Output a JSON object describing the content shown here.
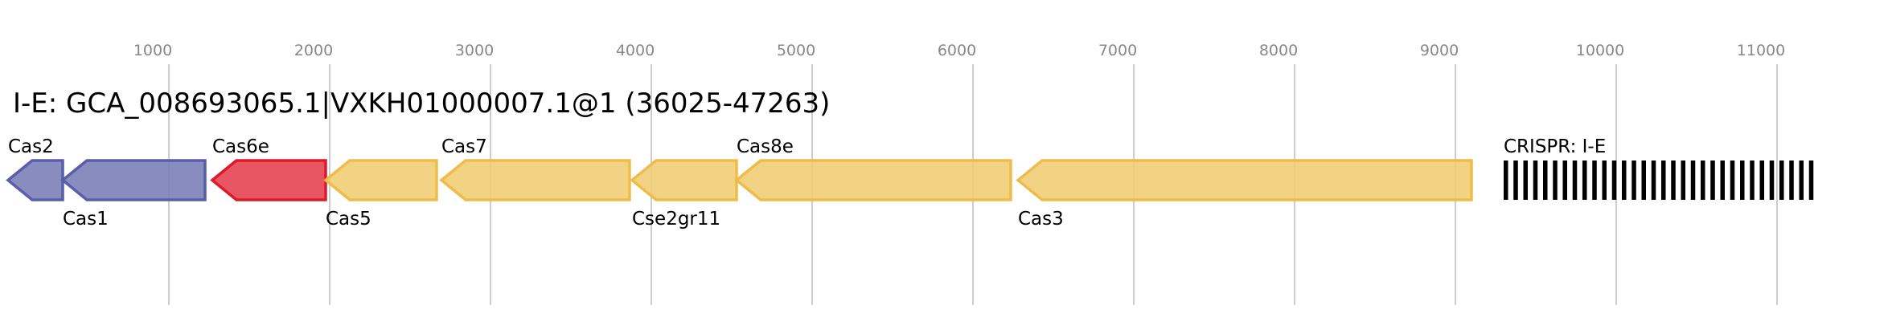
{
  "title": "I-E: GCA_008693065.1|VXKH01000007.1@1 (36025-47263)",
  "axis": {
    "ticks": [
      1000,
      2000,
      3000,
      4000,
      5000,
      6000,
      7000,
      8000,
      9000,
      10000,
      11000
    ],
    "range": [
      0,
      11700
    ]
  },
  "genes": [
    {
      "name": "Cas2",
      "start": 0,
      "end": 340,
      "strand": "-",
      "label_pos": "top",
      "fill": "#7b7fb8",
      "stroke": "#5a5ea8"
    },
    {
      "name": "Cas1",
      "start": 340,
      "end": 1225,
      "strand": "-",
      "label_pos": "bottom",
      "fill": "#7b7fb8",
      "stroke": "#5a5ea8"
    },
    {
      "name": "Cas6e",
      "start": 1270,
      "end": 1975,
      "strand": "-",
      "label_pos": "top",
      "fill": "#e54452",
      "stroke": "#dd1a28"
    },
    {
      "name": "Cas5",
      "start": 1975,
      "end": 2665,
      "strand": "-",
      "label_pos": "bottom",
      "fill": "#f1cd76",
      "stroke": "#eebc4b"
    },
    {
      "name": "Cas7",
      "start": 2695,
      "end": 3865,
      "strand": "-",
      "label_pos": "top",
      "fill": "#f1cd76",
      "stroke": "#eebc4b"
    },
    {
      "name": "Cse2gr11",
      "start": 3880,
      "end": 4530,
      "strand": "-",
      "label_pos": "bottom",
      "fill": "#f1cd76",
      "stroke": "#eebc4b"
    },
    {
      "name": "Cas8e",
      "start": 4530,
      "end": 6235,
      "strand": "-",
      "label_pos": "top",
      "fill": "#f1cd76",
      "stroke": "#eebc4b"
    },
    {
      "name": "Cas3",
      "start": 6280,
      "end": 9100,
      "strand": "-",
      "label_pos": "bottom",
      "fill": "#f1cd76",
      "stroke": "#eebc4b"
    }
  ],
  "crispr": {
    "label": "CRISPR: I-E",
    "start": 9300,
    "end": 11260,
    "repeat_count": 32,
    "color": "#000000"
  }
}
